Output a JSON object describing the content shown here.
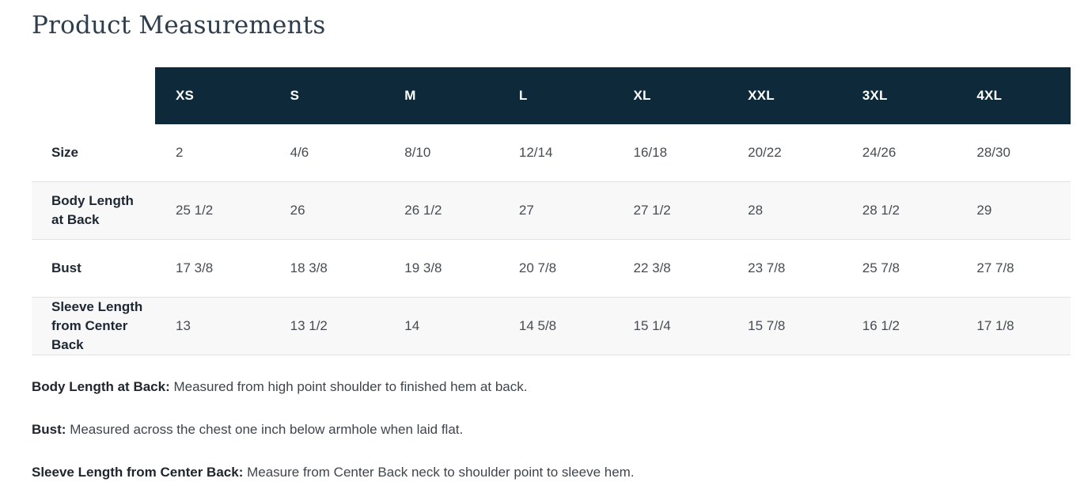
{
  "page": {
    "title": "Product Measurements"
  },
  "table": {
    "columns": [
      "XS",
      "S",
      "M",
      "L",
      "XL",
      "XXL",
      "3XL",
      "4XL"
    ],
    "rows": [
      {
        "label": "Size",
        "values": [
          "2",
          "4/6",
          "8/10",
          "12/14",
          "16/18",
          "20/22",
          "24/26",
          "28/30"
        ]
      },
      {
        "label": "Body Length at Back",
        "values": [
          "25 1/2",
          "26",
          "26 1/2",
          "27",
          "27 1/2",
          "28",
          "28 1/2",
          "29"
        ]
      },
      {
        "label": "Bust",
        "values": [
          "17 3/8",
          "18 3/8",
          "19 3/8",
          "20 7/8",
          "22 3/8",
          "23 7/8",
          "25 7/8",
          "27 7/8"
        ]
      },
      {
        "label": "Sleeve Length from Center Back",
        "values": [
          "13",
          "13 1/2",
          "14",
          "14 5/8",
          "15 1/4",
          "15 7/8",
          "16 1/2",
          "17 1/8"
        ]
      }
    ]
  },
  "footnotes": [
    {
      "term": "Body Length at Back:",
      "definition": "Measured from high point shoulder to finished hem at back."
    },
    {
      "term": "Bust:",
      "definition": "Measured across the chest one inch below armhole when laid flat."
    },
    {
      "term": "Sleeve Length from Center Back:",
      "definition": "Measure from Center Back neck to shoulder point to sleeve hem."
    }
  ],
  "colors": {
    "header_bg": "#0e2a3a",
    "header_text": "#ffffff",
    "stripe_bg": "#f8f8f8",
    "border": "#e2e2e2",
    "title_text": "#2e3d4c"
  }
}
